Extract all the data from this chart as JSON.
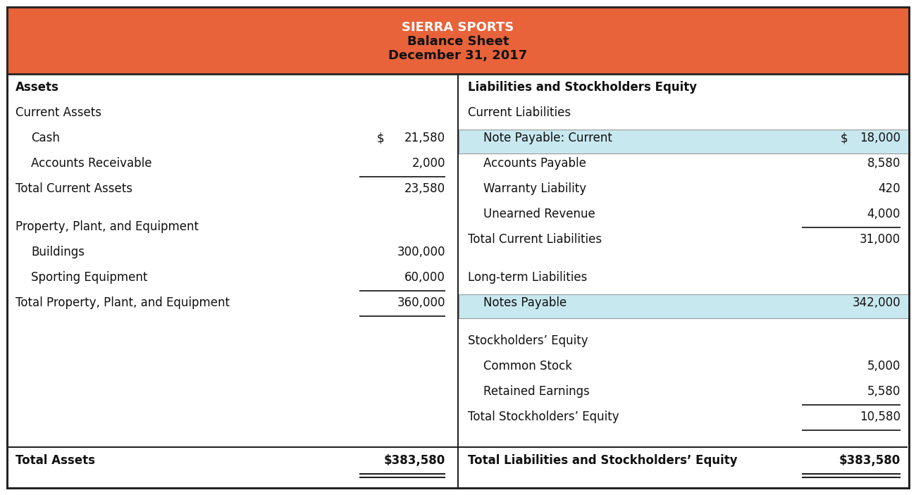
{
  "title_line1": "SIERRA SPORTS",
  "title_line2": "Balance Sheet",
  "title_line3": "December 31, 2017",
  "header_bg": "#E8623A",
  "header_text_color": "#FFFFFF",
  "header_text_color2": "#111111",
  "body_bg": "#FFFFFF",
  "border_color": "#222222",
  "highlight_bg": "#C8E8F0",
  "body_text_color": "#111111",
  "fig_width": 13.0,
  "fig_height": 7.03,
  "dpi": 100,
  "left_rows": [
    {
      "label": "Assets",
      "value": null,
      "indent": 0,
      "bold": true,
      "ul": false,
      "ds": false,
      "spacer_before": false,
      "spacer_after": false
    },
    {
      "label": "Current Assets",
      "value": null,
      "indent": 0,
      "bold": false,
      "ul": false,
      "ds": false,
      "spacer_before": false,
      "spacer_after": false
    },
    {
      "label": "Cash",
      "value": "21,580",
      "indent": 1,
      "bold": false,
      "ul": false,
      "ds": false,
      "dollar": true,
      "spacer_before": false,
      "spacer_after": false
    },
    {
      "label": "Accounts Receivable",
      "value": "2,000",
      "indent": 1,
      "bold": false,
      "ul": true,
      "ds": false,
      "dollar": false,
      "spacer_before": false,
      "spacer_after": false
    },
    {
      "label": "Total Current Assets",
      "value": "23,580",
      "indent": 0,
      "bold": false,
      "ul": false,
      "ds": false,
      "dollar": false,
      "spacer_before": false,
      "spacer_after": true
    },
    {
      "label": "Property, Plant, and Equipment",
      "value": null,
      "indent": 0,
      "bold": false,
      "ul": false,
      "ds": false,
      "spacer_before": false,
      "spacer_after": false
    },
    {
      "label": "Buildings",
      "value": "300,000",
      "indent": 1,
      "bold": false,
      "ul": false,
      "ds": false,
      "dollar": false,
      "spacer_before": false,
      "spacer_after": false
    },
    {
      "label": "Sporting Equipment",
      "value": "60,000",
      "indent": 1,
      "bold": false,
      "ul": true,
      "ds": false,
      "dollar": false,
      "spacer_before": false,
      "spacer_after": false
    },
    {
      "label": "Total Property, Plant, and Equipment",
      "value": "360,000",
      "indent": 0,
      "bold": false,
      "ul": true,
      "ds": false,
      "dollar": false,
      "spacer_before": false,
      "spacer_after": false
    }
  ],
  "right_rows": [
    {
      "label": "Liabilities and Stockholders Equity",
      "value": null,
      "indent": 0,
      "bold": true,
      "ul": false,
      "ds": false,
      "dollar": false,
      "hl": false,
      "spacer_before": false,
      "spacer_after": false
    },
    {
      "label": "Current Liabilities",
      "value": null,
      "indent": 0,
      "bold": false,
      "ul": false,
      "ds": false,
      "dollar": false,
      "hl": false,
      "spacer_before": false,
      "spacer_after": false
    },
    {
      "label": "Note Payable: Current",
      "value": "18,000",
      "indent": 1,
      "bold": false,
      "ul": false,
      "ds": false,
      "dollar": true,
      "hl": true,
      "spacer_before": false,
      "spacer_after": false
    },
    {
      "label": "Accounts Payable",
      "value": "8,580",
      "indent": 1,
      "bold": false,
      "ul": false,
      "ds": false,
      "dollar": false,
      "hl": false,
      "spacer_before": false,
      "spacer_after": false
    },
    {
      "label": "Warranty Liability",
      "value": "420",
      "indent": 1,
      "bold": false,
      "ul": false,
      "ds": false,
      "dollar": false,
      "hl": false,
      "spacer_before": false,
      "spacer_after": false
    },
    {
      "label": "Unearned Revenue",
      "value": "4,000",
      "indent": 1,
      "bold": false,
      "ul": true,
      "ds": false,
      "dollar": false,
      "hl": false,
      "spacer_before": false,
      "spacer_after": false
    },
    {
      "label": "Total Current Liabilities",
      "value": "31,000",
      "indent": 0,
      "bold": false,
      "ul": false,
      "ds": false,
      "dollar": false,
      "hl": false,
      "spacer_before": false,
      "spacer_after": true
    },
    {
      "label": "Long-term Liabilities",
      "value": null,
      "indent": 0,
      "bold": false,
      "ul": false,
      "ds": false,
      "dollar": false,
      "hl": false,
      "spacer_before": false,
      "spacer_after": false
    },
    {
      "label": "Notes Payable",
      "value": "342,000",
      "indent": 1,
      "bold": false,
      "ul": false,
      "ds": false,
      "dollar": false,
      "hl": true,
      "spacer_before": false,
      "spacer_after": true
    },
    {
      "label": "Stockholders’ Equity",
      "value": null,
      "indent": 0,
      "bold": false,
      "ul": false,
      "ds": false,
      "dollar": false,
      "hl": false,
      "spacer_before": false,
      "spacer_after": false
    },
    {
      "label": "Common Stock",
      "value": "5,000",
      "indent": 1,
      "bold": false,
      "ul": false,
      "ds": false,
      "dollar": false,
      "hl": false,
      "spacer_before": false,
      "spacer_after": false
    },
    {
      "label": "Retained Earnings",
      "value": "5,580",
      "indent": 1,
      "bold": false,
      "ul": true,
      "ds": false,
      "dollar": false,
      "hl": false,
      "spacer_before": false,
      "spacer_after": false
    },
    {
      "label": "Total Stockholders’ Equity",
      "value": "10,580",
      "indent": 0,
      "bold": false,
      "ul": true,
      "ds": false,
      "dollar": false,
      "hl": false,
      "spacer_before": false,
      "spacer_after": false
    }
  ],
  "left_total_label": "Total Assets",
  "left_total_value": "$383,580",
  "right_total_label": "Total Liabilities and Stockholders’ Equity",
  "right_total_value": "$383,580"
}
